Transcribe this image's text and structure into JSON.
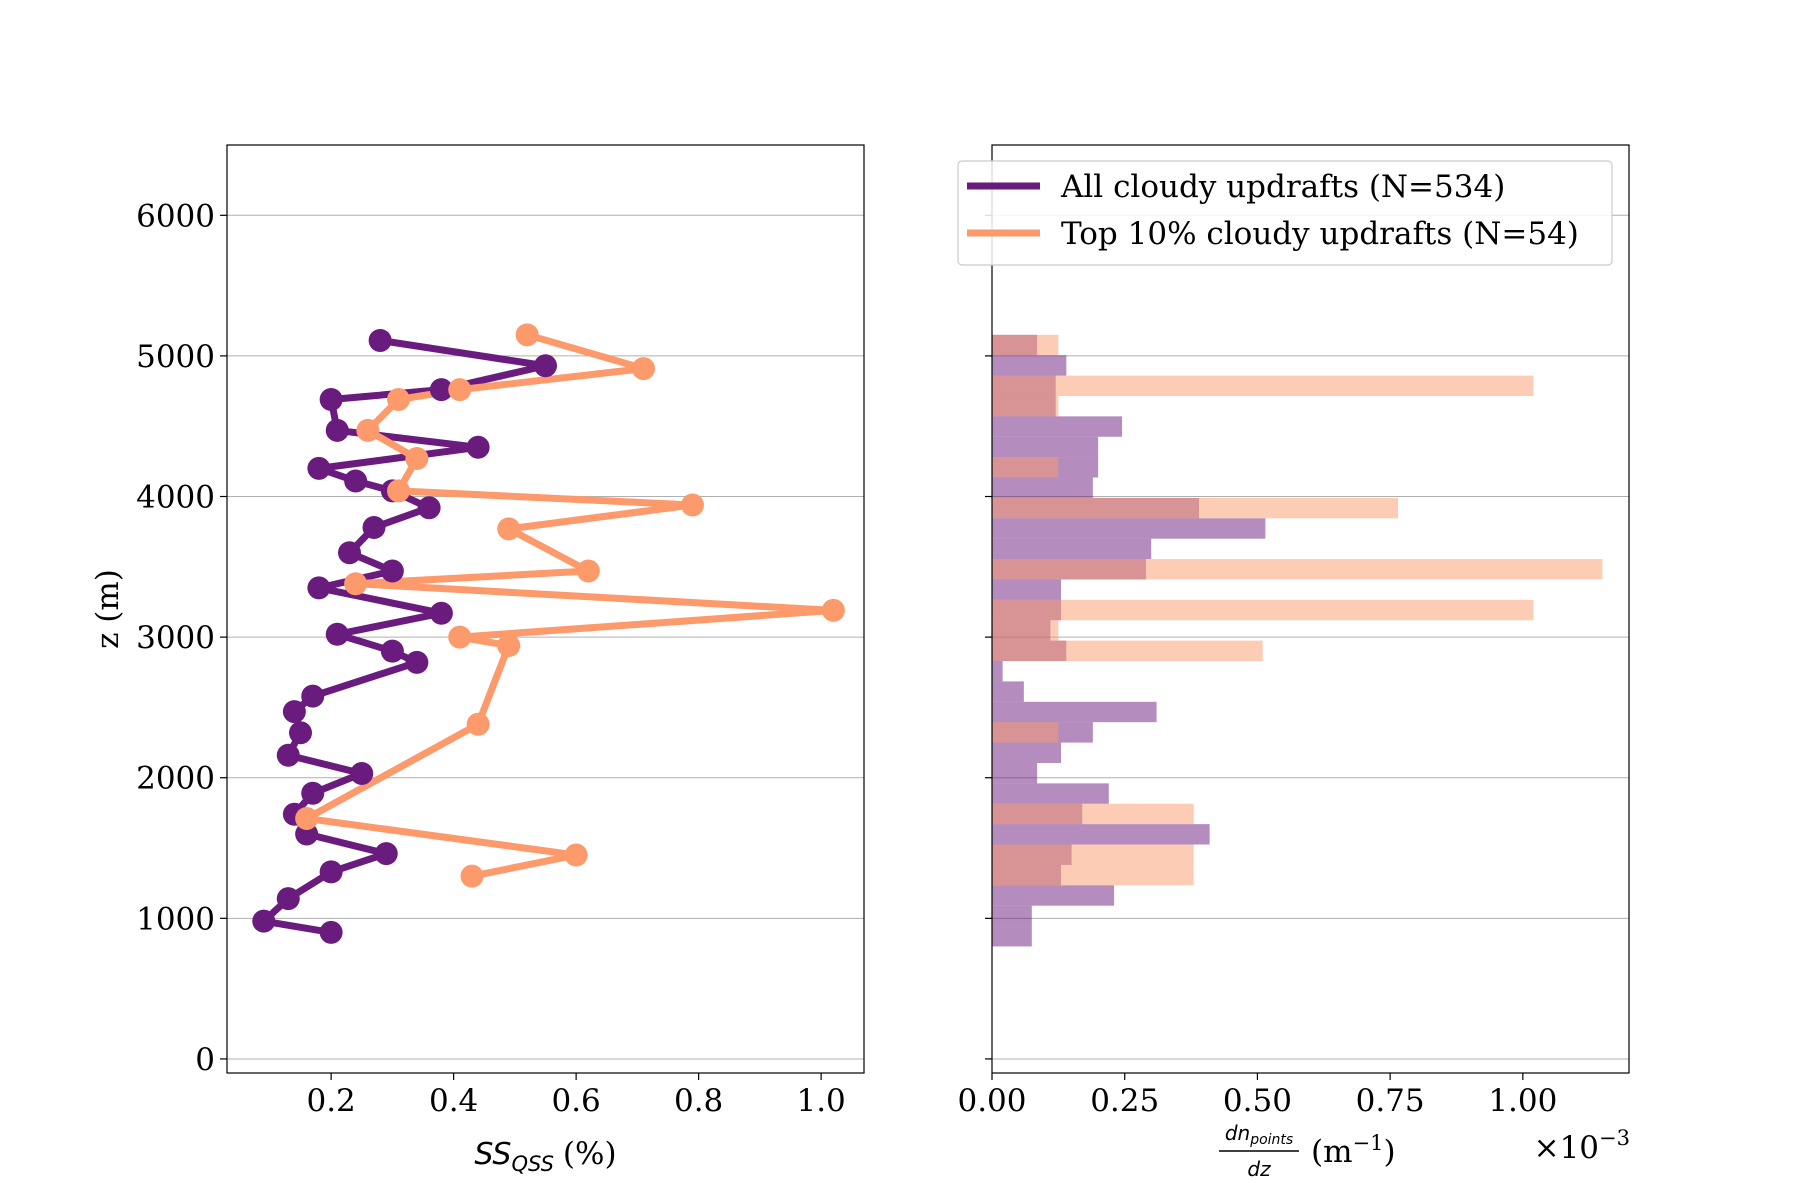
{
  "chart_data": [
    {
      "type": "line",
      "xlabel_main": "SS",
      "xlabel_sub": "QSS",
      "xlabel_unit": "(%)",
      "ylabel": "z (m)",
      "xlim": [
        0.03,
        1.07
      ],
      "ylim": [
        -100,
        6500
      ],
      "xticks": [
        0.2,
        0.4,
        0.6,
        0.8,
        1.0
      ],
      "xtick_labels": [
        "0.2",
        "0.4",
        "0.6",
        "0.8",
        "1.0"
      ],
      "yticks": [
        0,
        1000,
        2000,
        3000,
        4000,
        5000,
        6000
      ],
      "ytick_labels": [
        "0",
        "1000",
        "2000",
        "3000",
        "4000",
        "5000",
        "6000"
      ],
      "grid": "horizontal",
      "series": [
        {
          "name": "All cloudy updrafts (N=534)",
          "color": "#6a1b7e",
          "points": [
            {
              "x": 0.2,
              "y": 900
            },
            {
              "x": 0.09,
              "y": 980
            },
            {
              "x": 0.13,
              "y": 1140
            },
            {
              "x": 0.2,
              "y": 1330
            },
            {
              "x": 0.29,
              "y": 1460
            },
            {
              "x": 0.16,
              "y": 1600
            },
            {
              "x": 0.14,
              "y": 1740
            },
            {
              "x": 0.17,
              "y": 1890
            },
            {
              "x": 0.25,
              "y": 2030
            },
            {
              "x": 0.13,
              "y": 2160
            },
            {
              "x": 0.15,
              "y": 2320
            },
            {
              "x": 0.14,
              "y": 2470
            },
            {
              "x": 0.17,
              "y": 2580
            },
            {
              "x": 0.34,
              "y": 2820
            },
            {
              "x": 0.3,
              "y": 2900
            },
            {
              "x": 0.21,
              "y": 3020
            },
            {
              "x": 0.38,
              "y": 3170
            },
            {
              "x": 0.18,
              "y": 3350
            },
            {
              "x": 0.3,
              "y": 3470
            },
            {
              "x": 0.23,
              "y": 3600
            },
            {
              "x": 0.27,
              "y": 3780
            },
            {
              "x": 0.36,
              "y": 3920
            },
            {
              "x": 0.3,
              "y": 4040
            },
            {
              "x": 0.24,
              "y": 4110
            },
            {
              "x": 0.18,
              "y": 4200
            },
            {
              "x": 0.44,
              "y": 4350
            },
            {
              "x": 0.21,
              "y": 4470
            },
            {
              "x": 0.2,
              "y": 4690
            },
            {
              "x": 0.38,
              "y": 4760
            },
            {
              "x": 0.55,
              "y": 4930
            },
            {
              "x": 0.28,
              "y": 5110
            }
          ]
        },
        {
          "name": "Top 10% cloudy updrafts (N=54)",
          "color": "#fc9a6c",
          "points": [
            {
              "x": 0.43,
              "y": 1300
            },
            {
              "x": 0.6,
              "y": 1450
            },
            {
              "x": 0.16,
              "y": 1710
            },
            {
              "x": 0.44,
              "y": 2380
            },
            {
              "x": 0.49,
              "y": 2940
            },
            {
              "x": 0.41,
              "y": 3000
            },
            {
              "x": 1.02,
              "y": 3190
            },
            {
              "x": 0.24,
              "y": 3380
            },
            {
              "x": 0.62,
              "y": 3470
            },
            {
              "x": 0.49,
              "y": 3770
            },
            {
              "x": 0.79,
              "y": 3940
            },
            {
              "x": 0.31,
              "y": 4040
            },
            {
              "x": 0.34,
              "y": 4270
            },
            {
              "x": 0.26,
              "y": 4470
            },
            {
              "x": 0.31,
              "y": 4690
            },
            {
              "x": 0.41,
              "y": 4760
            },
            {
              "x": 0.71,
              "y": 4910
            },
            {
              "x": 0.52,
              "y": 5150
            }
          ]
        }
      ]
    },
    {
      "type": "bar",
      "orientation": "horizontal",
      "xlabel_num": "dn",
      "xlabel_num_sub": "points",
      "xlabel_den": "dz",
      "xlabel_unit": "(m",
      "xlabel_unit_exp": "−1",
      "xlabel_unit_close": ")",
      "offset_base": "×10",
      "offset_exp": "−3",
      "xlim": [
        0,
        1.2
      ],
      "ylim": [
        -100,
        6500
      ],
      "xticks": [
        0,
        0.25,
        0.5,
        0.75,
        1.0
      ],
      "xtick_labels": [
        "0.00",
        "0.25",
        "0.50",
        "0.75",
        "1.00"
      ],
      "yticks": [
        0,
        1000,
        2000,
        3000,
        4000,
        5000,
        6000
      ],
      "grid": "horizontal",
      "bin_height": 145,
      "legend_position": "top-right",
      "series": [
        {
          "name": "All cloudy updrafts (N=534)",
          "color": "#6a1b7e",
          "fill": "#b48dbe",
          "bins": [
            {
              "y0": 800,
              "value": 0.075
            },
            {
              "y0": 945,
              "value": 0.075
            },
            {
              "y0": 1090,
              "value": 0.23
            },
            {
              "y0": 1235,
              "value": 0.13
            },
            {
              "y0": 1380,
              "value": 0.15
            },
            {
              "y0": 1525,
              "value": 0.41
            },
            {
              "y0": 1670,
              "value": 0.17
            },
            {
              "y0": 1815,
              "value": 0.22
            },
            {
              "y0": 1960,
              "value": 0.085
            },
            {
              "y0": 2105,
              "value": 0.13
            },
            {
              "y0": 2250,
              "value": 0.19
            },
            {
              "y0": 2395,
              "value": 0.31
            },
            {
              "y0": 2540,
              "value": 0.06
            },
            {
              "y0": 2685,
              "value": 0.02
            },
            {
              "y0": 2830,
              "value": 0.14
            },
            {
              "y0": 2975,
              "value": 0.11
            },
            {
              "y0": 3120,
              "value": 0.13
            },
            {
              "y0": 3265,
              "value": 0.13
            },
            {
              "y0": 3410,
              "value": 0.29
            },
            {
              "y0": 3555,
              "value": 0.3
            },
            {
              "y0": 3700,
              "value": 0.515
            },
            {
              "y0": 3845,
              "value": 0.39
            },
            {
              "y0": 3990,
              "value": 0.19
            },
            {
              "y0": 4135,
              "value": 0.2
            },
            {
              "y0": 4280,
              "value": 0.2
            },
            {
              "y0": 4425,
              "value": 0.245
            },
            {
              "y0": 4570,
              "value": 0.12
            },
            {
              "y0": 4715,
              "value": 0.12
            },
            {
              "y0": 4860,
              "value": 0.14
            },
            {
              "y0": 5005,
              "value": 0.085
            }
          ]
        },
        {
          "name": "Top 10% cloudy updrafts (N=54)",
          "color": "#fc9a6c",
          "fill": "#fcc3a8",
          "bins": [
            {
              "y0": 1235,
              "value": 0.38
            },
            {
              "y0": 1380,
              "value": 0.38
            },
            {
              "y0": 1670,
              "value": 0.38
            },
            {
              "y0": 2250,
              "value": 0.125
            },
            {
              "y0": 2830,
              "value": 0.51
            },
            {
              "y0": 2975,
              "value": 0.125
            },
            {
              "y0": 3120,
              "value": 1.02
            },
            {
              "y0": 3410,
              "value": 1.15
            },
            {
              "y0": 3845,
              "value": 0.765
            },
            {
              "y0": 4135,
              "value": 0.125
            },
            {
              "y0": 4570,
              "value": 0.125
            },
            {
              "y0": 4715,
              "value": 1.02
            },
            {
              "y0": 5005,
              "value": 0.125
            }
          ]
        }
      ]
    }
  ]
}
